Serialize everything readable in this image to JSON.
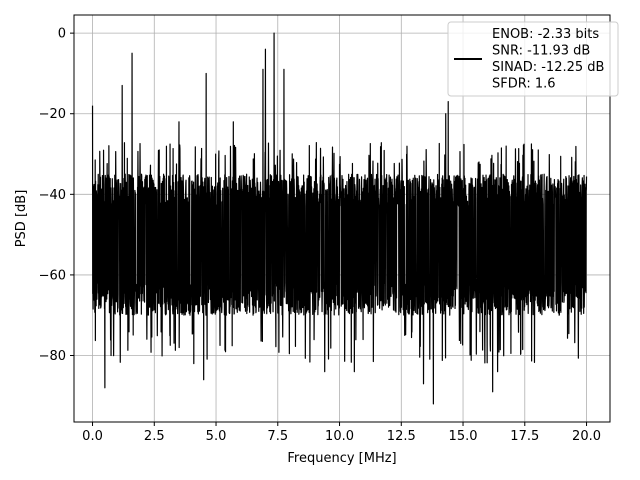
{
  "chart_data": {
    "type": "line",
    "title": "",
    "xlabel": "Frequency [MHz]",
    "ylabel": "PSD [dB]",
    "xlim": [
      -0.75,
      20.95
    ],
    "ylim": [
      -96.5,
      4.5
    ],
    "xticks": [
      0.0,
      2.5,
      5.0,
      7.5,
      10.0,
      12.5,
      15.0,
      17.5,
      20.0
    ],
    "xtick_labels": [
      "0.0",
      "2.5",
      "5.0",
      "7.5",
      "10.0",
      "12.5",
      "15.0",
      "17.5",
      "20.0"
    ],
    "yticks": [
      0,
      -20,
      -40,
      -60,
      -80
    ],
    "ytick_labels": [
      "0",
      "−20",
      "−40",
      "−60",
      "−80"
    ],
    "grid": true,
    "legend_position": "top-right",
    "series": [
      {
        "color": "#000000",
        "noise_band_db": [
          -70,
          -35
        ],
        "x_range": [
          0.0,
          20.0
        ],
        "spikes": [
          {
            "x": 0.0,
            "y": -18
          },
          {
            "x": 0.5,
            "y": -88
          },
          {
            "x": 0.75,
            "y": -80
          },
          {
            "x": 1.2,
            "y": -13
          },
          {
            "x": 1.6,
            "y": -5
          },
          {
            "x": 2.7,
            "y": -29
          },
          {
            "x": 3.5,
            "y": -22
          },
          {
            "x": 4.1,
            "y": -82
          },
          {
            "x": 4.5,
            "y": -86
          },
          {
            "x": 4.6,
            "y": -10
          },
          {
            "x": 5.7,
            "y": -22
          },
          {
            "x": 6.9,
            "y": -9
          },
          {
            "x": 7.0,
            "y": -4
          },
          {
            "x": 7.35,
            "y": 0
          },
          {
            "x": 7.75,
            "y": -9
          },
          {
            "x": 9.4,
            "y": -84
          },
          {
            "x": 10.6,
            "y": -84
          },
          {
            "x": 13.4,
            "y": -87
          },
          {
            "x": 13.8,
            "y": -92
          },
          {
            "x": 14.3,
            "y": -20
          },
          {
            "x": 14.4,
            "y": -17
          },
          {
            "x": 16.2,
            "y": -89
          },
          {
            "x": 16.4,
            "y": -84
          }
        ]
      }
    ],
    "legend": {
      "lines": [
        "ENOB: -2.33 bits",
        "SNR: -11.93 dB",
        "SINAD: -12.25 dB",
        "SFDR: 1.6"
      ]
    }
  },
  "colors": {
    "line": "#000000",
    "grid": "#b0b0b0",
    "axes": "#000000",
    "legend_border": "#cccccc"
  }
}
